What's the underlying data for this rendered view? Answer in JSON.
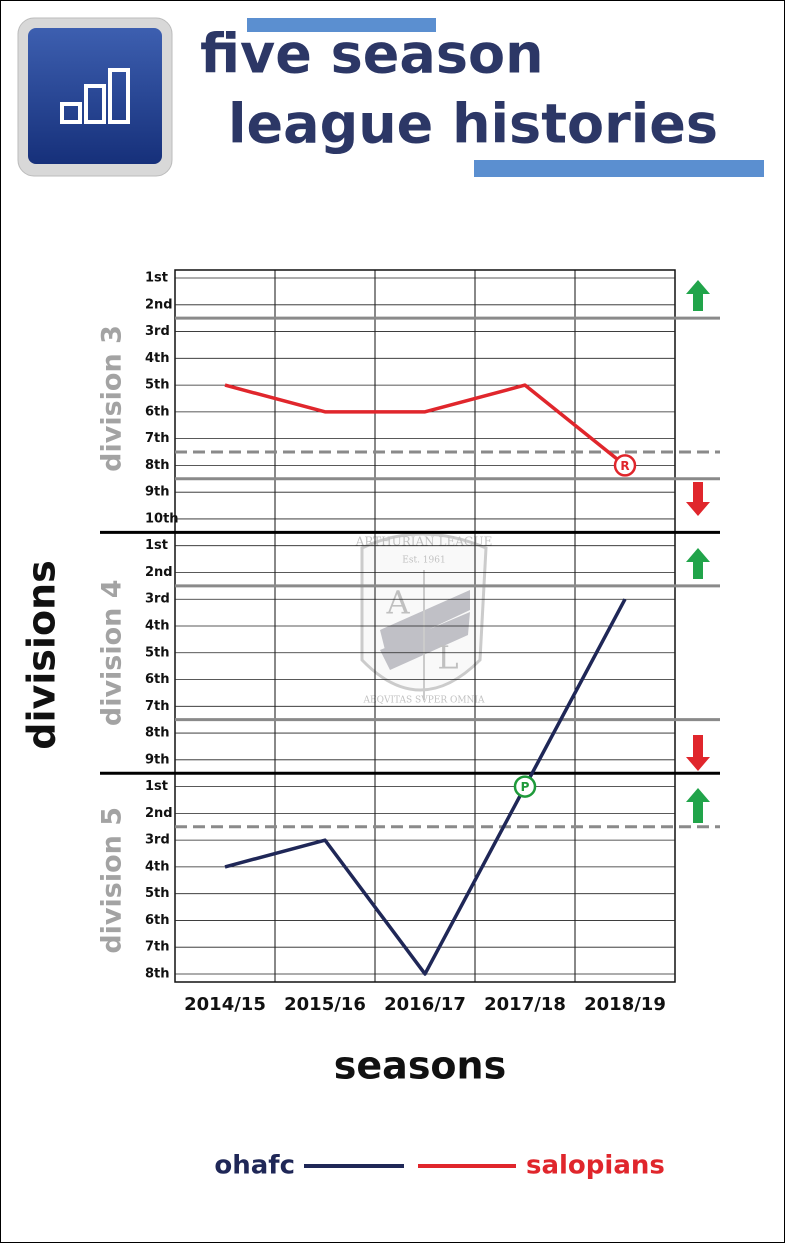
{
  "chart_data": {
    "type": "line",
    "title": [
      "five season",
      "league histories"
    ],
    "x_label": "seasons",
    "y_label": "divisions",
    "categories": [
      "2014/15",
      "2015/16",
      "2016/17",
      "2017/18",
      "2018/19"
    ],
    "series": [
      {
        "name": "ohafc",
        "color": "#1f2757",
        "values": [
          23,
          22,
          27,
          20,
          13
        ]
      },
      {
        "name": "salopians",
        "color": "#e0262c",
        "values": [
          5,
          6,
          6,
          5,
          8
        ]
      }
    ],
    "ylim": [
      27.3,
      0.7
    ],
    "yticks": [
      {
        "value": 1,
        "label": "1st"
      },
      {
        "value": 2,
        "label": "2nd"
      },
      {
        "value": 3,
        "label": "3rd"
      },
      {
        "value": 4,
        "label": "4th"
      },
      {
        "value": 5,
        "label": "5th"
      },
      {
        "value": 6,
        "label": "6th"
      },
      {
        "value": 7,
        "label": "7th"
      },
      {
        "value": 8,
        "label": "8th"
      },
      {
        "value": 9,
        "label": "9th"
      },
      {
        "value": 10,
        "label": "10th"
      },
      {
        "value": 11,
        "label": "1st"
      },
      {
        "value": 12,
        "label": "2nd"
      },
      {
        "value": 13,
        "label": "3rd"
      },
      {
        "value": 14,
        "label": "4th"
      },
      {
        "value": 15,
        "label": "5th"
      },
      {
        "value": 16,
        "label": "6th"
      },
      {
        "value": 17,
        "label": "7th"
      },
      {
        "value": 18,
        "label": "8th"
      },
      {
        "value": 19,
        "label": "9th"
      },
      {
        "value": 20,
        "label": "1st"
      },
      {
        "value": 21,
        "label": "2nd"
      },
      {
        "value": 22,
        "label": "3rd"
      },
      {
        "value": 23,
        "label": "4th"
      },
      {
        "value": 24,
        "label": "5th"
      },
      {
        "value": 25,
        "label": "6th"
      },
      {
        "value": 26,
        "label": "7th"
      },
      {
        "value": 27,
        "label": "8th"
      }
    ],
    "grid": true,
    "divisions": [
      {
        "label": "division 3",
        "range": [
          1,
          10
        ]
      },
      {
        "label": "division 4",
        "range": [
          11,
          19
        ]
      },
      {
        "label": "division 5",
        "range": [
          20,
          27
        ]
      }
    ],
    "division_lines": [
      10.5,
      19.5
    ],
    "zone_lines": [
      {
        "at": 2.5,
        "style": "solid"
      },
      {
        "at": 7.5,
        "style": "dashed"
      },
      {
        "at": 8.5,
        "style": "solid"
      },
      {
        "at": 12.5,
        "style": "solid"
      },
      {
        "at": 17.5,
        "style": "solid"
      },
      {
        "at": 21.5,
        "style": "dashed"
      }
    ],
    "annotations": [
      {
        "text": "R",
        "x": "2018/19",
        "y": 8,
        "color": "#e0262c"
      },
      {
        "text": "P",
        "x": "2017/18",
        "y": 20,
        "color": "#1e9a3a"
      }
    ],
    "watermark": {
      "top": "ARTHURIAN LEAGUE",
      "est": "Est. 1961",
      "left": "A",
      "right": "L",
      "motto": "AEQVITAS SVPER OMNIA"
    }
  }
}
